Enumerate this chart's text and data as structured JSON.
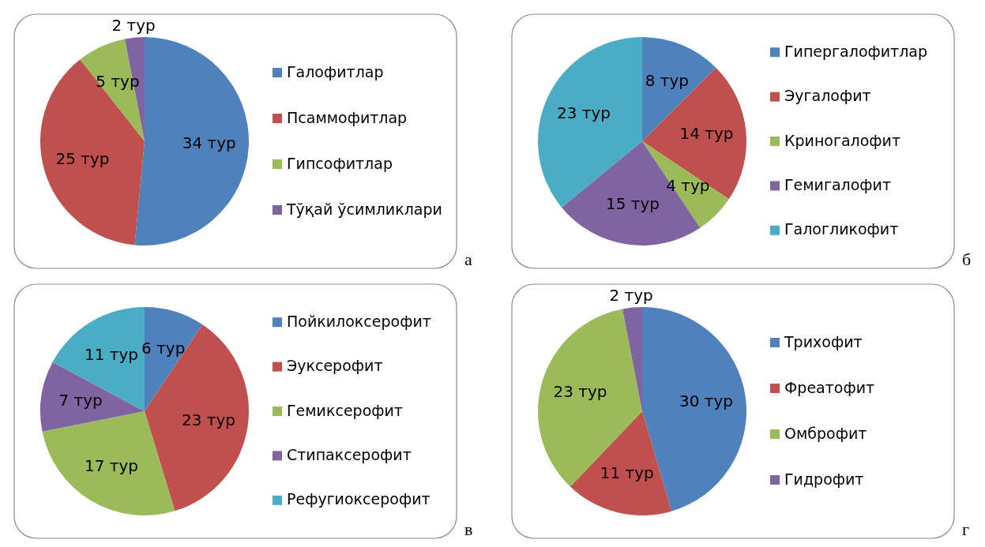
{
  "chart_data": [
    {
      "type": "pie",
      "categories": [
        "Галофитлар",
        "Псаммофитлар",
        "Гипсофитлар",
        "Тўқай ўсимликлари"
      ],
      "values": [
        34,
        25,
        5,
        2
      ],
      "colors": [
        "#4f81bd",
        "#c0504d",
        "#9bbb59",
        "#8064a2"
      ],
      "value_labels": [
        "34 тур",
        "25 тур",
        "5 тур",
        "2 тур"
      ],
      "legend": "right",
      "annotations": [
        "а"
      ]
    },
    {
      "type": "pie",
      "categories": [
        "Гипергалофитлар",
        "Эугалофит",
        "Криногалофит",
        "Гемигалофит",
        "Галогликофит"
      ],
      "values": [
        8,
        14,
        4,
        15,
        23
      ],
      "colors": [
        "#4f81bd",
        "#c0504d",
        "#9bbb59",
        "#8064a2",
        "#4bacc6"
      ],
      "value_labels": [
        "8 тур",
        "14 тур",
        "4 тур",
        "15 тур",
        "23 тур"
      ],
      "legend": "right",
      "annotations": [
        "б"
      ]
    },
    {
      "type": "pie",
      "categories": [
        "Пойкилоксерофит",
        "Эуксерофит",
        "Гемиксерофит",
        "Стипаксерофит",
        "Рефугиоксерофит"
      ],
      "values": [
        6,
        23,
        17,
        7,
        11
      ],
      "colors": [
        "#4f81bd",
        "#c0504d",
        "#9bbb59",
        "#8064a2",
        "#4bacc6"
      ],
      "value_labels": [
        "6 тур",
        "23 тур",
        "17 тур",
        "7 тур",
        "11 тур"
      ],
      "legend": "right",
      "annotations": [
        "в"
      ]
    },
    {
      "type": "pie",
      "categories": [
        "Трихофит",
        "Фреатофит",
        "Омброфит",
        "Гидрофит"
      ],
      "values": [
        30,
        11,
        23,
        2
      ],
      "colors": [
        "#4f81bd",
        "#c0504d",
        "#9bbb59",
        "#8064a2"
      ],
      "value_labels": [
        "30 тур",
        "11 тур",
        "23 тур",
        "2 тур"
      ],
      "legend": "right",
      "annotations": [
        "г"
      ]
    }
  ]
}
